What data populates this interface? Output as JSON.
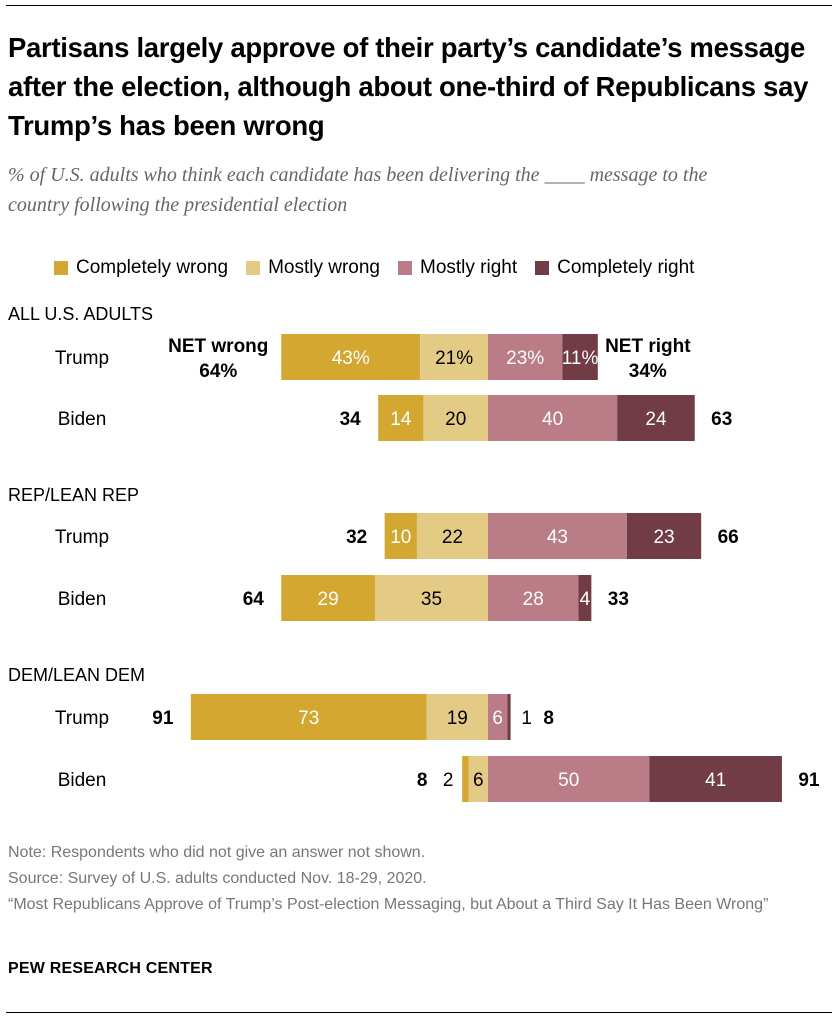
{
  "title": "Partisans largely approve of their party’s candidate’s message after the election, although about one-third of Republicans say Trump’s has been wrong",
  "subtitle": "% of U.S. adults who think each candidate has been delivering the ____ message to the country following the presidential election",
  "legend": [
    {
      "label": "Completely wrong",
      "color": "#D3A730"
    },
    {
      "label": "Mostly wrong",
      "color": "#E3CB85"
    },
    {
      "label": "Mostly right",
      "color": "#BA7C87"
    },
    {
      "label": "Completely right",
      "color": "#723C47"
    }
  ],
  "chart_data": {
    "type": "bar",
    "orientation": "horizontal-diverging",
    "series": [
      "Completely wrong",
      "Mostly wrong",
      "Mostly right",
      "Completely right"
    ],
    "groups": [
      {
        "name": "ALL U.S. ADULTS",
        "rows": [
          {
            "label": "Trump",
            "values": [
              43,
              21,
              23,
              11
            ],
            "value_labels": [
              "43%",
              "21%",
              "23%",
              "11%"
            ],
            "net_wrong": "64%",
            "net_right": "34%",
            "net_wrong_title": "NET wrong",
            "net_right_title": "NET right"
          },
          {
            "label": "Biden",
            "values": [
              14,
              20,
              40,
              24
            ],
            "value_labels": [
              "14",
              "20",
              "40",
              "24"
            ],
            "net_wrong": "34",
            "net_right": "63"
          }
        ]
      },
      {
        "name": "REP/LEAN REP",
        "rows": [
          {
            "label": "Trump",
            "values": [
              10,
              22,
              43,
              23
            ],
            "value_labels": [
              "10",
              "22",
              "43",
              "23"
            ],
            "net_wrong": "32",
            "net_right": "66"
          },
          {
            "label": "Biden",
            "values": [
              29,
              35,
              28,
              4
            ],
            "value_labels": [
              "29",
              "35",
              "28",
              "4"
            ],
            "net_wrong": "64",
            "net_right": "33"
          }
        ]
      },
      {
        "name": "DEM/LEAN DEM",
        "rows": [
          {
            "label": "Trump",
            "values": [
              73,
              19,
              6,
              1
            ],
            "value_labels": [
              "73",
              "19",
              "6",
              "1"
            ],
            "net_wrong": "91",
            "net_right": "8"
          },
          {
            "label": "Biden",
            "values": [
              2,
              6,
              50,
              41
            ],
            "value_labels": [
              "2",
              "6",
              "50",
              "41"
            ],
            "net_wrong": "8",
            "net_right": "91"
          }
        ]
      }
    ]
  },
  "footer": {
    "note": "Note: Respondents who did not give an answer not shown.",
    "source": "Source: Survey of U.S. adults conducted Nov. 18-29, 2020.",
    "report": "“Most Republicans Approve of Trump’s Post-election Messaging, but About a Third Say It Has Been Wrong”",
    "brand": "PEW RESEARCH CENTER"
  }
}
